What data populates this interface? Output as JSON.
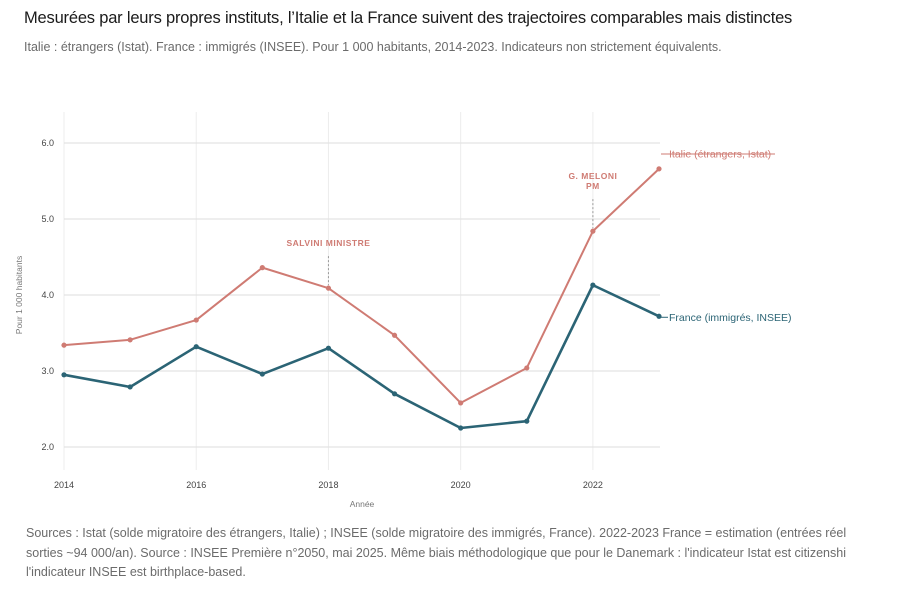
{
  "header": {
    "title": "Mesurées par leurs propres instituts, l’Italie et la France suivent des trajectoires comparables mais distinctes",
    "subtitle": "Italie : étrangers (Istat). France : immigrés (INSEE). Pour 1 000 habitants, 2014-2023. Indicateurs non strictement équivalents."
  },
  "footer": {
    "lines": [
      "Sources : Istat (solde migratoire des étrangers, Italie) ; INSEE (solde migratoire des immigrés, France). 2022-2023 France = estimation (entrées réel",
      "sorties ~94 000/an). Source : INSEE Première n°2050, mai 2025. Même biais méthodologique que pour le Danemark : l'indicateur Istat est citizenshi",
      "l'indicateur INSEE est birthplace-based."
    ]
  },
  "chart_data": {
    "type": "line",
    "title": "Mesurées par leurs propres instituts, l’Italie et la France suivent des trajectoires comparables mais distinctes",
    "xlabel": "Année",
    "ylabel": "Pour 1 000 habitants",
    "x": [
      2014,
      2015,
      2016,
      2017,
      2018,
      2019,
      2020,
      2021,
      2022,
      2023
    ],
    "xlim": [
      2014,
      2023
    ],
    "ylim": [
      1.7,
      6.4
    ],
    "x_ticks": [
      2014,
      2016,
      2018,
      2020,
      2022
    ],
    "x_tick_labels": [
      "2014",
      "2016",
      "2018",
      "2020",
      "2022"
    ],
    "y_ticks": [
      2.0,
      3.0,
      4.0,
      5.0,
      6.0
    ],
    "y_tick_labels": [
      "2.0",
      "3.0",
      "4.0",
      "5.0",
      "6.0"
    ],
    "grid": true,
    "legend": "direct-labels-right",
    "series": [
      {
        "name": "Italie (étrangers, Istat)",
        "color": "#cf7b73",
        "values": [
          3.34,
          3.41,
          3.67,
          4.36,
          4.09,
          3.47,
          2.58,
          3.04,
          4.84,
          5.66
        ]
      },
      {
        "name": "France (immigrés, INSEE)",
        "color": "#2b6475",
        "values": [
          2.95,
          2.79,
          3.32,
          2.96,
          3.3,
          2.7,
          2.25,
          2.34,
          4.13,
          3.72
        ]
      }
    ],
    "annotations": [
      {
        "x": 2018,
        "lines": [
          "SALVINI MINISTRE"
        ],
        "series": 0
      },
      {
        "x": 2022,
        "lines": [
          "G. MELONI",
          "PM"
        ],
        "series": 0
      }
    ]
  }
}
